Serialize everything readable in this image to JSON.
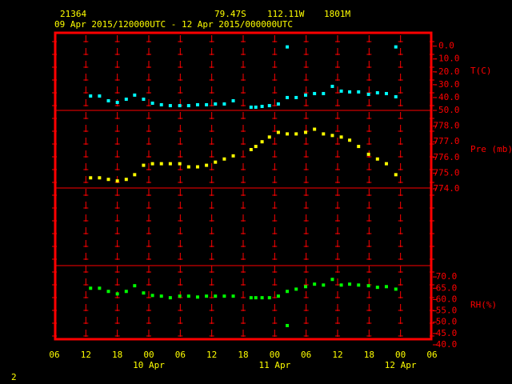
{
  "header": {
    "station": "21364",
    "lat": "79.47S",
    "lon": "112.11W",
    "elev": "1801M",
    "period": "09 Apr 2015/120000UTC - 12 Apr 2015/000000UTC"
  },
  "page_number": "2",
  "chart_data": [
    {
      "type": "scatter",
      "ylabel": "T(C)",
      "color": "#00ffff",
      "x": [
        6.9,
        8.6,
        10.3,
        12.0,
        13.7,
        15.3,
        17.0,
        18.7,
        20.4,
        22.1,
        23.9,
        25.6,
        27.3,
        29.0,
        30.7,
        32.4,
        34.1,
        37.5,
        38.4,
        39.6,
        41.0,
        42.7,
        44.4,
        44.4,
        46.1,
        47.9,
        49.6,
        51.3,
        53.0,
        54.7,
        56.3,
        58.0,
        59.9,
        61.6,
        63.3,
        65.1,
        65.1
      ],
      "values": [
        -38.8,
        -38.8,
        -42.5,
        -43.8,
        -41.3,
        -38.1,
        -41.3,
        -44.4,
        -45.6,
        -46.3,
        -46.3,
        -46.3,
        -45.6,
        -45.6,
        -45.0,
        -45.0,
        -42.5,
        -47.5,
        -47.5,
        -46.9,
        -46.3,
        -45.0,
        -0.6,
        -40.0,
        -40.0,
        -38.1,
        -36.9,
        -36.9,
        -31.3,
        -35.0,
        -35.6,
        -35.6,
        -37.5,
        -36.3,
        -36.9,
        -0.6,
        -39.4
      ],
      "ylim": [
        -50,
        11
      ],
      "yticks": [
        {
          "value": 0,
          "label": "0.0"
        },
        {
          "value": -10,
          "label": "-10.0"
        },
        {
          "value": -20,
          "label": "-20.0"
        },
        {
          "value": -30,
          "label": "-30.0"
        },
        {
          "value": -40,
          "label": "-40.0"
        },
        {
          "value": -50,
          "label": "-50.0"
        }
      ]
    },
    {
      "type": "scatter",
      "ylabel": "Pre (mb)",
      "color": "#ffff00",
      "x": [
        6.9,
        8.6,
        10.3,
        12.0,
        13.7,
        15.3,
        17.0,
        18.7,
        20.4,
        22.1,
        23.9,
        25.6,
        27.3,
        29.0,
        30.7,
        32.4,
        34.1,
        37.5,
        38.4,
        39.6,
        41.0,
        42.7,
        44.4,
        46.1,
        47.9,
        49.6,
        51.3,
        53.0,
        54.7,
        56.3,
        58.0,
        59.9,
        61.6,
        63.3,
        65.1
      ],
      "values": [
        774.7,
        774.7,
        774.6,
        774.5,
        774.6,
        774.9,
        775.5,
        775.6,
        775.6,
        775.6,
        775.6,
        775.4,
        775.4,
        775.5,
        775.7,
        775.9,
        776.1,
        776.5,
        776.7,
        777.0,
        777.3,
        777.6,
        777.5,
        777.5,
        777.6,
        777.8,
        777.5,
        777.4,
        777.3,
        777.1,
        776.7,
        776.2,
        775.9,
        775.6,
        774.9
      ],
      "ylim": [
        774,
        779
      ],
      "yticks": [
        {
          "value": 778,
          "label": "778.0"
        },
        {
          "value": 777,
          "label": "777.0"
        },
        {
          "value": 776,
          "label": "776.0"
        },
        {
          "value": 775,
          "label": "775.0"
        },
        {
          "value": 774,
          "label": "774.0"
        }
      ]
    },
    {
      "type": "scatter",
      "ylabel": "RH(%)",
      "color": "#00ff00",
      "x": [
        6.9,
        8.6,
        10.3,
        12.0,
        13.7,
        15.3,
        17.0,
        18.7,
        20.4,
        22.1,
        23.9,
        25.6,
        27.3,
        29.0,
        30.7,
        32.4,
        34.1,
        37.5,
        38.4,
        39.6,
        41.0,
        42.7,
        44.4,
        44.4,
        46.1,
        47.9,
        49.6,
        51.3,
        53.0,
        54.7,
        56.3,
        58.0,
        59.9,
        61.6,
        63.3,
        65.1
      ],
      "values": [
        65.0,
        65.0,
        63.6,
        62.5,
        63.6,
        66.1,
        62.9,
        61.8,
        61.5,
        60.8,
        61.5,
        61.5,
        61.1,
        61.5,
        61.5,
        61.5,
        61.5,
        60.8,
        60.8,
        60.8,
        60.8,
        61.5,
        63.6,
        48.5,
        64.6,
        65.7,
        66.8,
        66.4,
        68.9,
        66.4,
        66.8,
        66.4,
        66.1,
        65.4,
        65.7,
        64.6
      ],
      "ylim": [
        40,
        75
      ],
      "yticks": [
        {
          "value": 70,
          "label": "70.0"
        },
        {
          "value": 65,
          "label": "65.0"
        },
        {
          "value": 60,
          "label": "60.0"
        },
        {
          "value": 55,
          "label": "55.0"
        },
        {
          "value": 50,
          "label": "50.0"
        },
        {
          "value": 45,
          "label": "45.0"
        },
        {
          "value": 40,
          "label": "40.0"
        }
      ],
      "xlim": [
        0,
        72
      ],
      "xticks": [
        {
          "value": 0,
          "label": "06"
        },
        {
          "value": 6,
          "label": "12"
        },
        {
          "value": 12,
          "label": "18"
        },
        {
          "value": 18,
          "label": "00"
        },
        {
          "value": 24,
          "label": "06"
        },
        {
          "value": 30,
          "label": "12"
        },
        {
          "value": 36,
          "label": "18"
        },
        {
          "value": 42,
          "label": "00"
        },
        {
          "value": 48,
          "label": "06"
        },
        {
          "value": 54,
          "label": "12"
        },
        {
          "value": 60,
          "label": "18"
        },
        {
          "value": 66,
          "label": "00"
        },
        {
          "value": 72,
          "label": "06"
        }
      ],
      "annotations": [
        {
          "text": "10 Apr",
          "x": 18
        },
        {
          "text": "11 Apr",
          "x": 42
        },
        {
          "text": "12 Apr",
          "x": 66
        }
      ]
    }
  ]
}
